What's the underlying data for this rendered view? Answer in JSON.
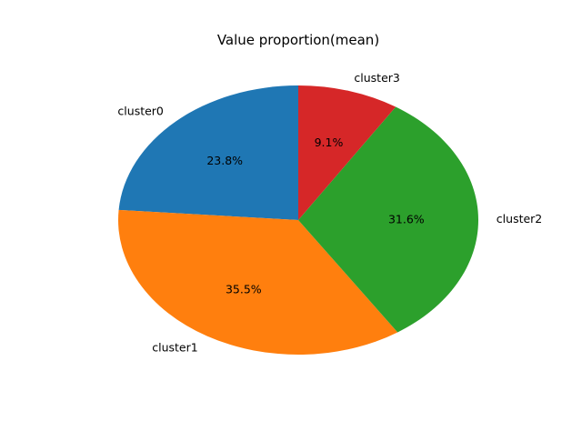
{
  "chart_data": {
    "type": "pie",
    "title": "Value proportion(mean)",
    "labels": [
      "cluster0",
      "cluster1",
      "cluster2",
      "cluster3"
    ],
    "values": [
      23.8,
      35.5,
      31.6,
      9.1
    ],
    "autopct": [
      "23.8%",
      "35.5%",
      "31.6%",
      "9.1%"
    ],
    "colors": [
      "#1f77b4",
      "#ff7f0e",
      "#2ca02c",
      "#d62728"
    ],
    "start_angle_deg": 90,
    "direction": "counterclockwise"
  }
}
